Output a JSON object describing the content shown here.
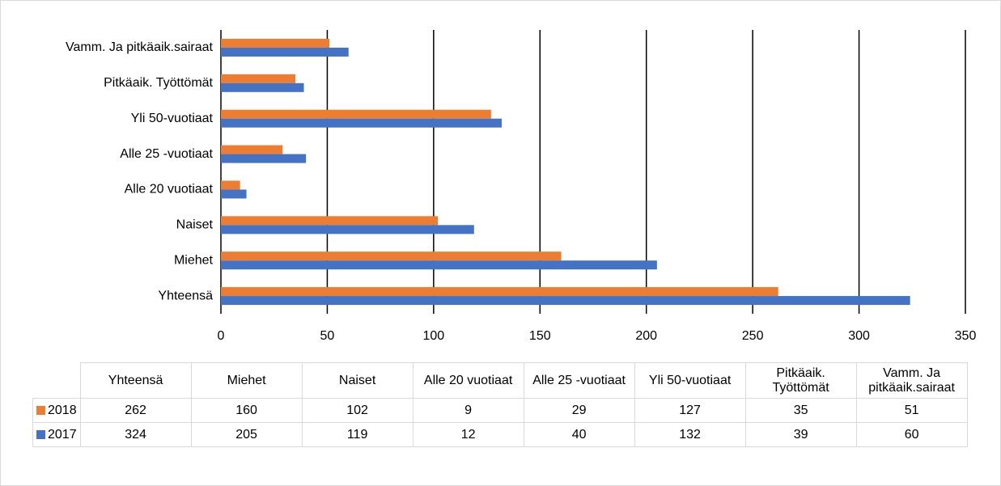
{
  "chart_data": {
    "type": "bar",
    "orientation": "horizontal",
    "categories": [
      "Yhteensä",
      "Miehet",
      "Naiset",
      "Alle 20 vuotiaat",
      "Alle 25 -vuotiaat",
      "Yli 50-vuotiaat",
      "Pitkäaik. Työttömät",
      "Vamm. Ja pitkäaik.sairaat"
    ],
    "series": [
      {
        "name": "2018",
        "color": "#ED7D31",
        "values": [
          262,
          160,
          102,
          9,
          29,
          127,
          35,
          51
        ]
      },
      {
        "name": "2017",
        "color": "#4472C4",
        "values": [
          324,
          205,
          119,
          12,
          40,
          132,
          39,
          60
        ]
      }
    ],
    "xlim": [
      0,
      350
    ],
    "xticks": [
      0,
      50,
      100,
      150,
      200,
      250,
      300,
      350
    ],
    "grid": true,
    "data_table": true
  }
}
